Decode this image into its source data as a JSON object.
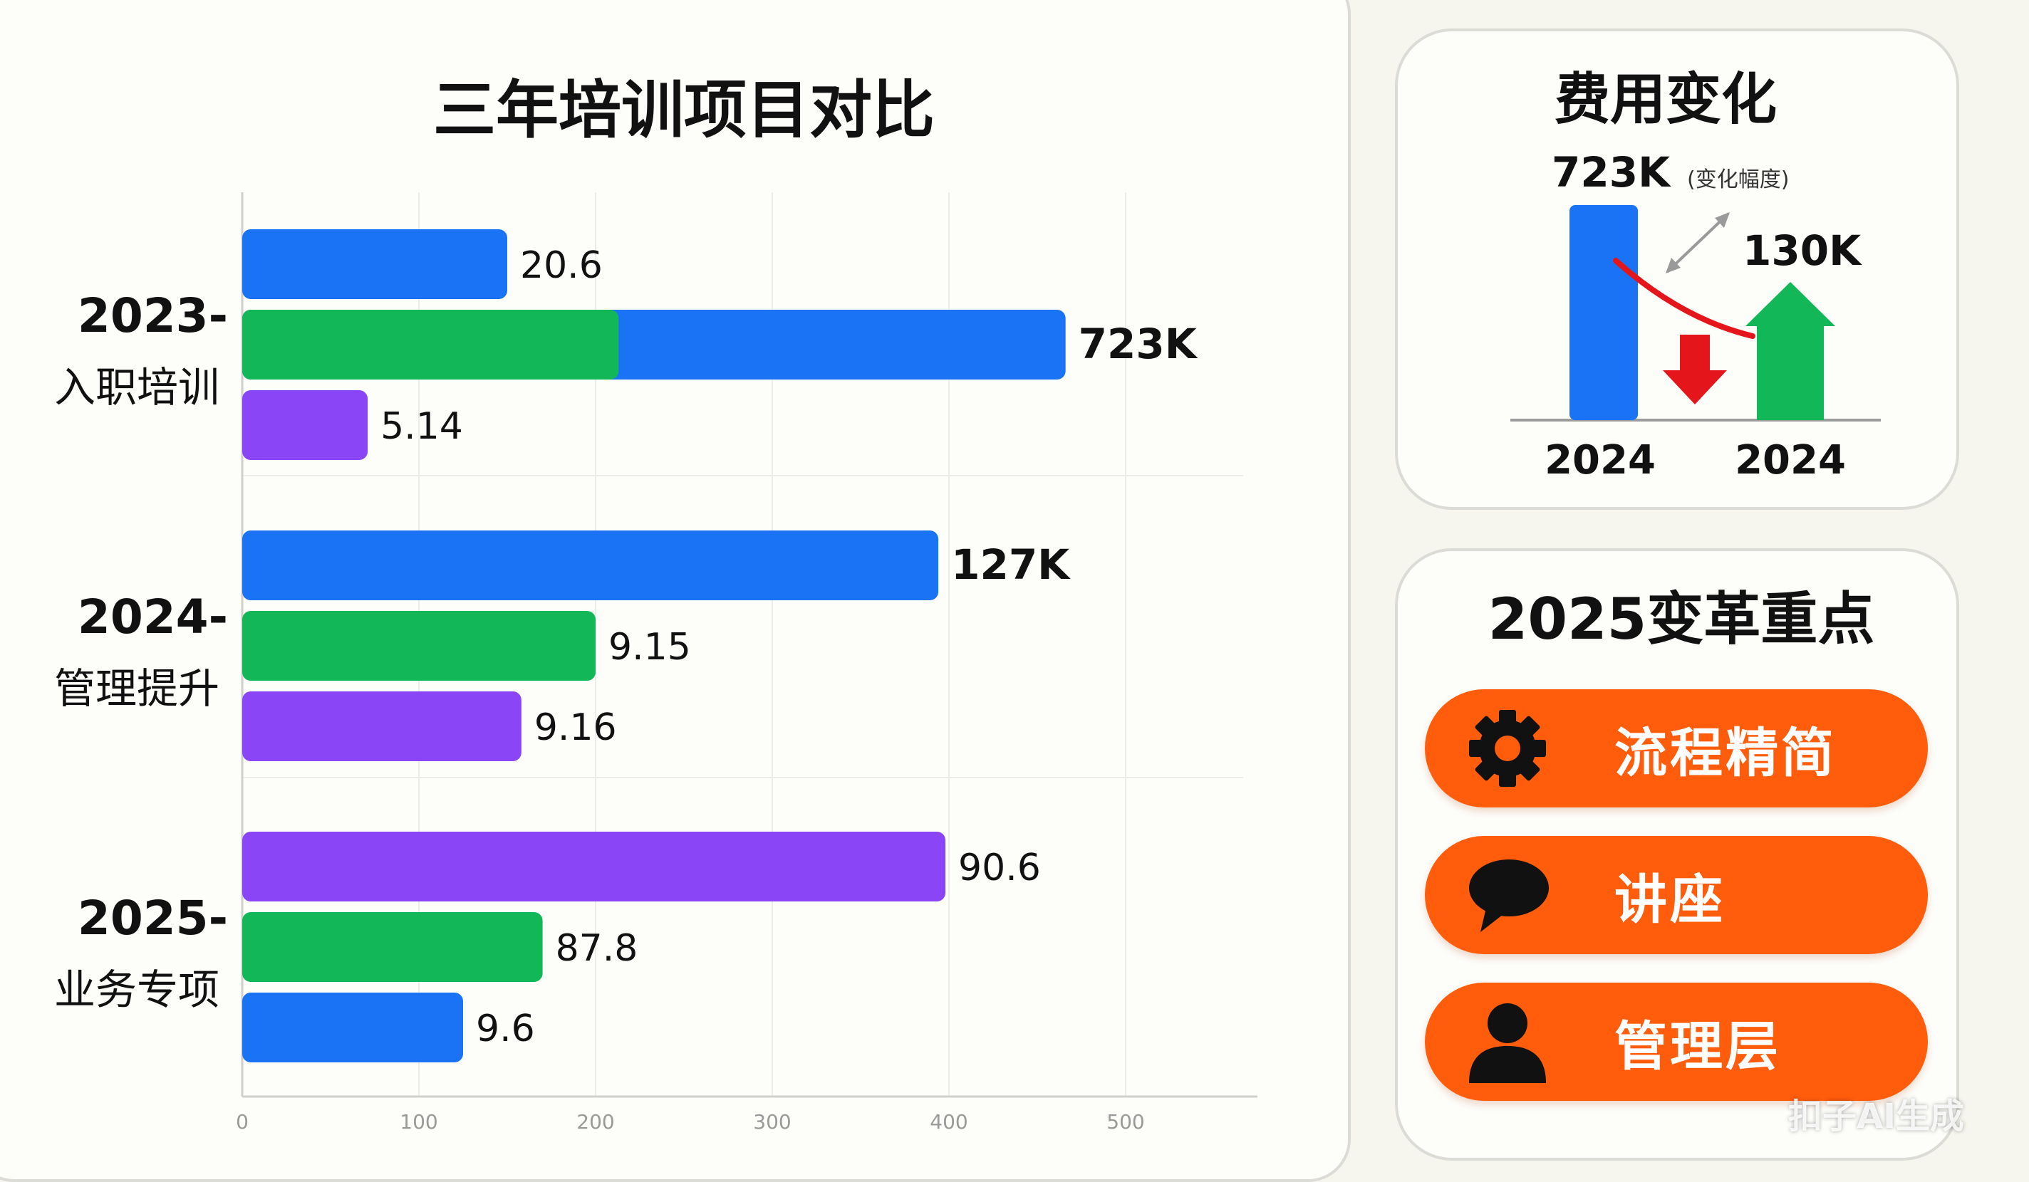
{
  "main_title": "三年培训项目对比",
  "chart_data": [
    {
      "type": "bar",
      "orientation": "horizontal",
      "title": "三年培训项目对比",
      "xlim": [
        0,
        575
      ],
      "x_ticks": [
        "0",
        "100",
        "200",
        "300",
        "400",
        "500"
      ],
      "grid": true,
      "groups": [
        {
          "year": "2023-",
          "name": "入职培训",
          "bars": [
            {
              "value": 150,
              "label": "20.6",
              "color": "#1a73f5"
            },
            {
              "value": 466,
              "label": "723K",
              "color": "#1a73f5",
              "inner_value": 213,
              "inner_color": "#12b757",
              "bold": true
            },
            {
              "value": 71,
              "label": "5.14",
              "color": "#8a45f7"
            }
          ]
        },
        {
          "year": "2024-",
          "name": "管理提升",
          "bars": [
            {
              "value": 394,
              "label": "127K",
              "color": "#1a73f5",
              "bold": true
            },
            {
              "value": 200,
              "label": "9.15",
              "color": "#12b757"
            },
            {
              "value": 158,
              "label": "9.16",
              "color": "#8a45f7"
            }
          ]
        },
        {
          "year": "2025-",
          "name": "业务专项",
          "bars": [
            {
              "value": 398,
              "label": "90.6",
              "color": "#8a45f7"
            },
            {
              "value": 170,
              "label": "87.8",
              "color": "#12b757"
            },
            {
              "value": 125,
              "label": "9.6",
              "color": "#1a73f5"
            }
          ]
        }
      ]
    },
    {
      "type": "bar",
      "title": "费用变化",
      "subtitle": "(变化幅度)",
      "categories": [
        "2024",
        "2024"
      ],
      "values": [
        723,
        130
      ],
      "value_labels": [
        "723K",
        "130K"
      ],
      "colors": [
        "#1a73f5",
        "#12b757"
      ],
      "trend_down_color": "#e5161b",
      "arrow_up_color": "#12b757"
    }
  ],
  "focus": {
    "title": "2025变革重点",
    "items": [
      {
        "label": "流程精简",
        "icon": "gear-icon"
      },
      {
        "label": "讲座",
        "icon": "speech-bubble-icon"
      },
      {
        "label": "管理层",
        "icon": "person-icon"
      }
    ],
    "pill_color": "#ff5c0c"
  },
  "watermark": "扣子AI生成"
}
